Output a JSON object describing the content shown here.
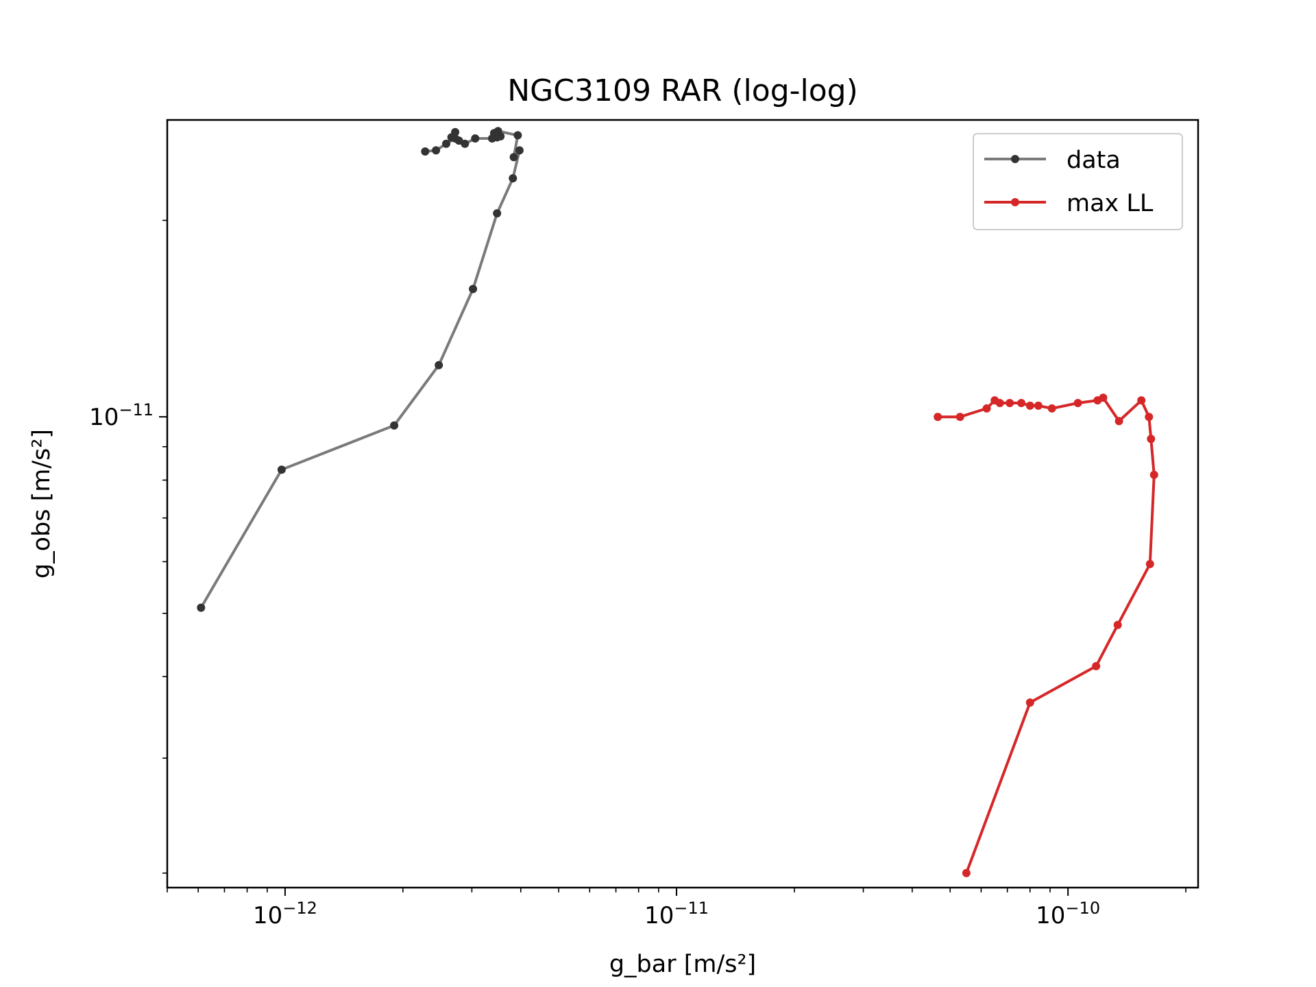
{
  "chart_data": {
    "type": "line",
    "title": "NGC3109 RAR (log-log)",
    "xlabel": "g_bar [m/s²]",
    "ylabel": "g_obs [m/s²]",
    "xscale": "log",
    "yscale": "log",
    "xlim": [
      5e-13,
      2.15e-10
    ],
    "ylim": [
      1.9e-12,
      2.85e-11
    ],
    "x_ticks": [
      {
        "value": 1e-12,
        "base": "10",
        "exp": "−12"
      },
      {
        "value": 1e-11,
        "base": "10",
        "exp": "−11"
      },
      {
        "value": 1e-10,
        "base": "10",
        "exp": "−10"
      }
    ],
    "y_ticks": [
      {
        "value": 1e-11,
        "base": "10",
        "exp": "−11"
      }
    ],
    "grid": false,
    "legend_position": "top-right",
    "series": [
      {
        "name": "data",
        "color": "#7a7a7a",
        "marker_color": "#333333",
        "x": [
          6.1e-13,
          9.8e-13,
          1.9e-12,
          2.47e-12,
          3.02e-12,
          3.48e-12,
          3.82e-12,
          3.97e-12,
          3.84e-12,
          3.93e-12,
          3.5e-12,
          3.42e-12,
          3.55e-12,
          3.48e-12,
          3.38e-12,
          3.06e-12,
          2.88e-12,
          2.78e-12,
          2.7e-12,
          2.72e-12,
          2.66e-12,
          2.72e-12,
          2.58e-12,
          2.43e-12,
          2.28e-12
        ],
        "y": [
          5.1e-12,
          8.3e-12,
          9.7e-12,
          1.2e-11,
          1.57e-11,
          2.05e-11,
          2.32e-11,
          2.56e-11,
          2.5e-11,
          2.7e-11,
          2.74e-11,
          2.72e-11,
          2.69e-11,
          2.68e-11,
          2.67e-11,
          2.67e-11,
          2.62e-11,
          2.65e-11,
          2.68e-11,
          2.73e-11,
          2.68e-11,
          2.67e-11,
          2.62e-11,
          2.56e-11,
          2.55e-11
        ]
      },
      {
        "name": "max LL",
        "color": "#d62728",
        "marker_color": "#d62728",
        "x": [
          5.5e-11,
          8e-11,
          1.18e-10,
          1.34e-10,
          1.62e-10,
          1.66e-10,
          1.63e-10,
          1.61e-10,
          1.54e-10,
          1.35e-10,
          1.23e-10,
          1.19e-10,
          1.06e-10,
          9.1e-11,
          8.4e-11,
          8e-11,
          7.6e-11,
          7.1e-11,
          6.7e-11,
          6.5e-11,
          6.2e-11,
          5.3e-11,
          4.65e-11
        ],
        "y": [
          2e-12,
          3.65e-12,
          4.15e-12,
          4.8e-12,
          5.95e-12,
          8.15e-12,
          9.25e-12,
          1e-11,
          1.06e-11,
          9.85e-12,
          1.07e-11,
          1.06e-11,
          1.05e-11,
          1.03e-11,
          1.04e-11,
          1.04e-11,
          1.05e-11,
          1.05e-11,
          1.05e-11,
          1.06e-11,
          1.03e-11,
          1e-11,
          1e-11
        ]
      }
    ]
  }
}
